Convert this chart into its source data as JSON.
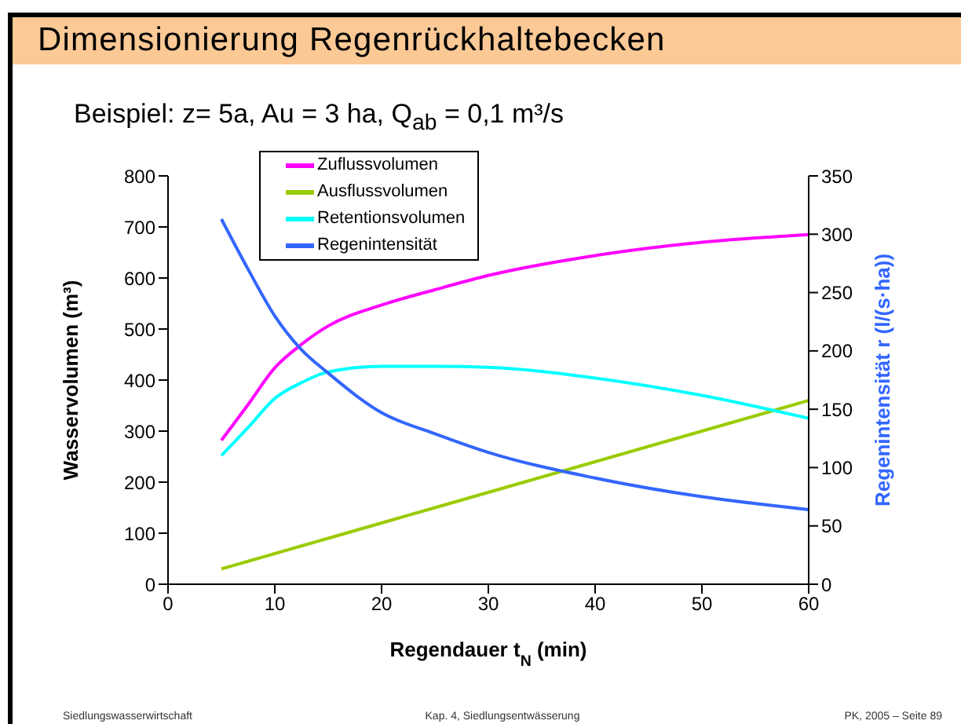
{
  "chart_data": {
    "type": "line",
    "title": "Dimensionierung Regenrückhaltebecken",
    "subtitle": "Beispiel: z= 5a, Au = 3 ha, Q$_{ab}$ = 0,1 m³/s",
    "xlabel": "Regendauer  t$_{N}$  (min)",
    "ylabel": "Wasservolumen  (m³)",
    "y2label": "Regenintensität  r  (l/(s·ha))",
    "x": [
      5,
      7.5,
      10,
      12.5,
      15,
      20,
      25,
      30,
      40,
      50,
      60
    ],
    "series": [
      {
        "name": "Zuflussvolumen",
        "color": "#ff00ff",
        "values": [
          282,
          352,
          424,
          470,
          506,
          547,
          577,
          605,
          644,
          670,
          685
        ]
      },
      {
        "name": "Ausflussvolumen",
        "color": "#99cc00",
        "values": [
          30,
          45,
          60,
          75,
          90,
          120,
          150,
          180,
          240,
          300,
          360
        ]
      },
      {
        "name": "Retentionsvolumen",
        "color": "#00ffff",
        "values": [
          252,
          307,
          364,
          395,
          416,
          427,
          427,
          425,
          404,
          370,
          325
        ]
      },
      {
        "name": "Regenintensität",
        "color": "#3366ff",
        "axis": "y2",
        "values": [
          313,
          270,
          230,
          201,
          181,
          147,
          129,
          113,
          91,
          75,
          64
        ]
      }
    ],
    "xlim": [
      0,
      60
    ],
    "xticks": [
      0,
      10,
      20,
      30,
      40,
      50,
      60
    ],
    "ylim": [
      0,
      800
    ],
    "yticks": [
      0,
      100,
      200,
      300,
      400,
      500,
      600,
      700,
      800
    ],
    "y2lim": [
      0,
      350
    ],
    "y2ticks": [
      0,
      50,
      100,
      150,
      200,
      250,
      300,
      350
    ],
    "legend": "top left",
    "marker": "none",
    "line_style": "solid",
    "annotations": [
      "Siedlungswasserwirtschaft",
      "Kap. 4, Siedlungsentwässerung",
      "PK, 2005 – Seite 89"
    ]
  }
}
